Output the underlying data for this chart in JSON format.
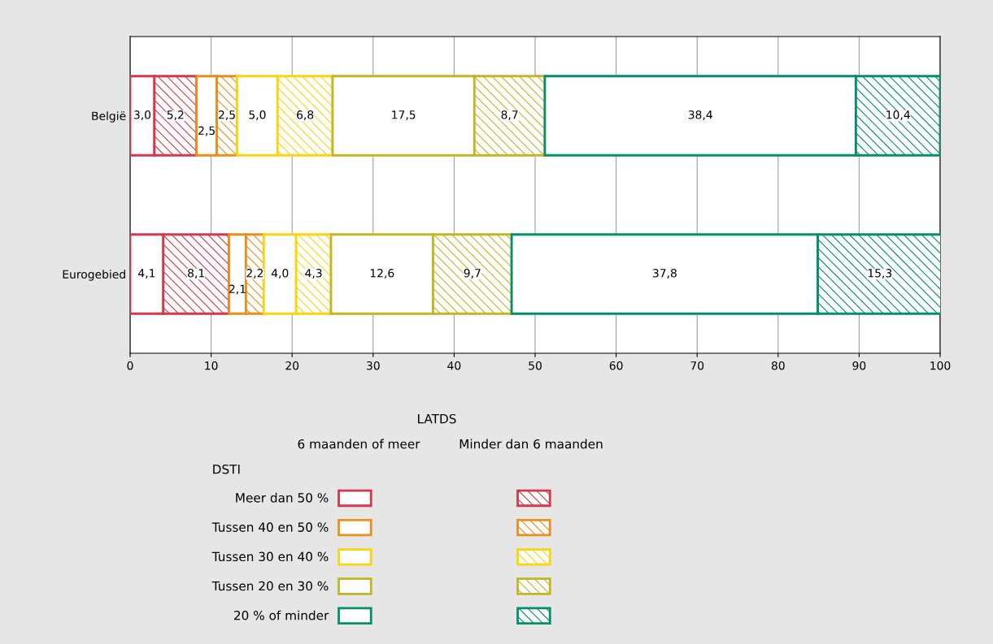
{
  "chart_data": {
    "type": "bar",
    "orientation": "horizontal",
    "stacked": true,
    "categories": [
      "België",
      "Eurogebied"
    ],
    "series": [
      {
        "name": "Meer dan 50 %",
        "color": "#d7374a",
        "values": [
          3.0,
          4.1
        ],
        "value_labels": [
          "3,0",
          "4,1"
        ]
      },
      {
        "color": "#d7374a",
        "values": [
          5.2,
          8.1
        ],
        "value_labels": [
          "5,2",
          "8,1"
        ]
      },
      {
        "name": "Tussen 40 en 50 %",
        "color": "#ef8c1a",
        "values": [
          2.5,
          2.1
        ],
        "value_labels": [
          "2,5",
          "2,1"
        ]
      },
      {
        "color": "#ef8c1a",
        "values": [
          2.5,
          2.2
        ],
        "value_labels": [
          "2,5",
          "2,2"
        ]
      },
      {
        "name": "Tussen 30 en 40 %",
        "color": "#fbd50c",
        "values": [
          5.0,
          4.0
        ],
        "value_labels": [
          "5,0",
          "4,0"
        ]
      },
      {
        "color": "#fbd50c",
        "values": [
          6.8,
          4.3
        ],
        "value_labels": [
          "6,8",
          "4,3"
        ]
      },
      {
        "name": "Tussen 20 en 30 %",
        "color": "#c2b624",
        "values": [
          17.5,
          12.6
        ],
        "value_labels": [
          "17,5",
          "12,6"
        ]
      },
      {
        "color": "#c2b624",
        "values": [
          8.7,
          9.7
        ],
        "value_labels": [
          "8,7",
          "9,7"
        ]
      },
      {
        "name": "20 % of minder",
        "color": "#00906a",
        "values": [
          38.4,
          37.8
        ],
        "value_labels": [
          "38,4",
          "37,8"
        ]
      },
      {
        "color": "#00906a",
        "values": [
          10.4,
          15.3
        ],
        "value_labels": [
          "10,4",
          "15,3"
        ]
      }
    ],
    "xlim": [
      0,
      100
    ],
    "xticks": [
      0,
      10,
      20,
      30,
      40,
      50,
      60,
      70,
      80,
      90,
      100
    ],
    "grid": "x",
    "legend": "bottom",
    "legend_title": "DSTI",
    "annotations": [
      "LATDS",
      "6 maanden of meer",
      "Minder dan 6 maanden"
    ]
  }
}
